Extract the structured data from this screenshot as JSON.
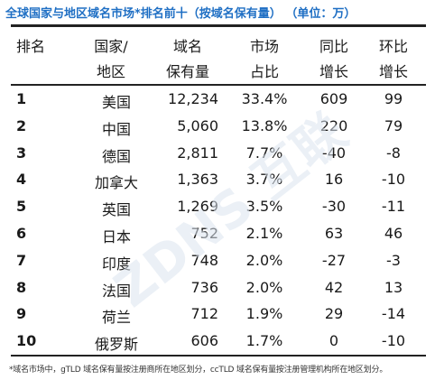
{
  "title": "全球国家与地区域名市场*排名前十（按域名保有量） （单位：万）",
  "header": {
    "rank": "排名",
    "country_line1": "国家/",
    "country_line2": "地区",
    "count_line1": "域名",
    "count_line2": "保有量",
    "share_line1": "市场",
    "share_line2": "占比",
    "yoy_line1": "同比",
    "yoy_line2": "增长",
    "qoq_line1": "环比",
    "qoq_line2": "增长"
  },
  "rows": [
    {
      "rank": "1",
      "country": "美国",
      "count": "12,234",
      "share": "33.4%",
      "yoy": "609",
      "qoq": "99"
    },
    {
      "rank": "2",
      "country": "中国",
      "count": "5,060",
      "share": "13.8%",
      "yoy": "220",
      "qoq": "79"
    },
    {
      "rank": "3",
      "country": "德国",
      "count": "2,811",
      "share": "7.7%",
      "yoy": "-40",
      "qoq": "-8"
    },
    {
      "rank": "4",
      "country": "加拿大",
      "count": "1,363",
      "share": "3.7%",
      "yoy": "16",
      "qoq": "-10"
    },
    {
      "rank": "5",
      "country": "英国",
      "count": "1,269",
      "share": "3.5%",
      "yoy": "-30",
      "qoq": "-11"
    },
    {
      "rank": "6",
      "country": "日本",
      "count": "752",
      "share": "2.1%",
      "yoy": "63",
      "qoq": "46"
    },
    {
      "rank": "7",
      "country": "印度",
      "count": "748",
      "share": "2.0%",
      "yoy": "-27",
      "qoq": "-3"
    },
    {
      "rank": "8",
      "country": "法国",
      "count": "736",
      "share": "2.0%",
      "yoy": "42",
      "qoq": "13"
    },
    {
      "rank": "9",
      "country": "荷兰",
      "count": "712",
      "share": "1.9%",
      "yoy": "29",
      "qoq": "-14"
    },
    {
      "rank": "10",
      "country": "俄罗斯",
      "count": "606",
      "share": "1.7%",
      "yoy": "0",
      "qoq": "-10"
    }
  ],
  "footnote": "*域名市场中，gTLD 域名保有量按注册商所在地区划分，ccTLD 域名保有量按注册管理机构所在地区划分。",
  "watermark": {
    "text": "ZDNS 互联"
  },
  "colors": {
    "title": "#1f6fc4",
    "rule": "#222222",
    "watermark": "#c9d6e6"
  }
}
